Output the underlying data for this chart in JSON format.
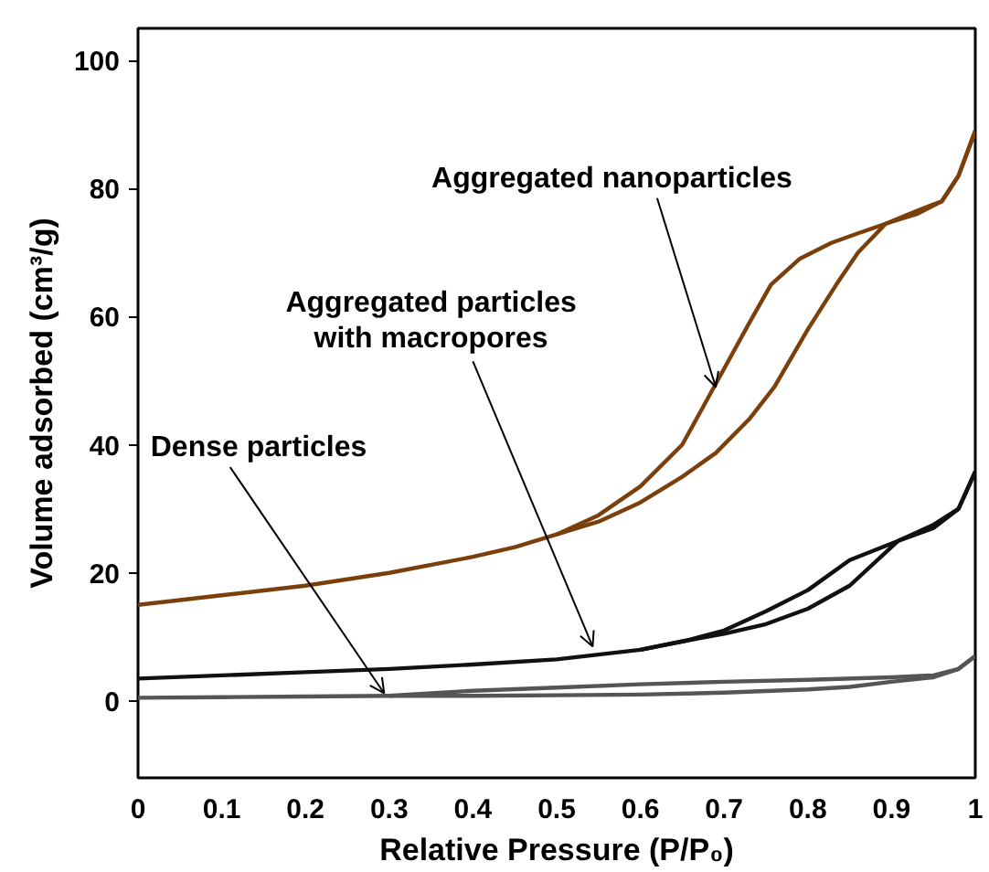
{
  "chart_data": {
    "type": "line",
    "xlabel": "Relative Pressure (P/P₀)",
    "ylabel": "Volume adsorbed (cm³/g)",
    "xlim": [
      0,
      1
    ],
    "ylim": [
      -12,
      105
    ],
    "xticks": [
      0,
      0.1,
      0.2,
      0.3,
      0.4,
      0.5,
      0.6,
      0.7,
      0.8,
      0.9,
      1
    ],
    "yticks": [
      0,
      20,
      40,
      60,
      80,
      100
    ],
    "grid": false,
    "line_style": "solid",
    "marker": "none",
    "series": [
      {
        "color": "#7b3f0c",
        "x": [
          0,
          0.1,
          0.2,
          0.3,
          0.4,
          0.45,
          0.5,
          0.55,
          0.6,
          0.65,
          0.69,
          0.73,
          0.76,
          0.8,
          0.834,
          0.86,
          0.893,
          0.93,
          0.96,
          0.98,
          1.0
        ],
        "values": [
          15,
          16.5,
          18,
          20,
          22.5,
          24,
          26,
          28,
          31,
          35,
          38.7,
          44,
          49,
          58,
          65,
          70,
          74.5,
          76.5,
          78,
          82,
          89
        ]
      },
      {
        "color": "#7b3f0c",
        "x": [
          1.0,
          0.98,
          0.96,
          0.93,
          0.893,
          0.86,
          0.828,
          0.79,
          0.756,
          0.73,
          0.69,
          0.65,
          0.6,
          0.55,
          0.5
        ],
        "values": [
          89,
          82,
          78,
          76,
          74.5,
          73,
          71.5,
          69,
          65,
          59,
          49.5,
          40,
          33.5,
          29,
          26
        ]
      },
      {
        "color": "#111111",
        "x": [
          0,
          0.1,
          0.2,
          0.3,
          0.4,
          0.5,
          0.6,
          0.654,
          0.7,
          0.75,
          0.8,
          0.85,
          0.908,
          0.95,
          0.98,
          1.0
        ],
        "values": [
          3.5,
          4,
          4.5,
          5,
          5.7,
          6.5,
          8,
          9.4,
          10.5,
          12,
          14.4,
          18,
          25,
          27,
          30,
          35.8
        ]
      },
      {
        "color": "#111111",
        "x": [
          1.0,
          0.98,
          0.95,
          0.908,
          0.85,
          0.8,
          0.75,
          0.7,
          0.654,
          0.6
        ],
        "values": [
          35.8,
          30,
          27.5,
          25,
          22,
          17.3,
          14,
          11,
          9.4,
          8
        ]
      },
      {
        "color": "#555555",
        "x": [
          0,
          0.1,
          0.2,
          0.3,
          0.4,
          0.5,
          0.6,
          0.7,
          0.8,
          0.85,
          0.9,
          0.95,
          0.98,
          1.0
        ],
        "values": [
          0.5,
          0.6,
          0.7,
          0.8,
          0.8,
          0.9,
          1,
          1.3,
          1.8,
          2.2,
          3,
          3.7,
          5,
          7
        ]
      },
      {
        "color": "#555555",
        "x": [
          1.0,
          0.98,
          0.95,
          0.9,
          0.8,
          0.7,
          0.6,
          0.5,
          0.4,
          0.35,
          0.3
        ],
        "values": [
          7,
          5,
          4,
          3.7,
          3.3,
          3,
          2.6,
          2.1,
          1.6,
          1.2,
          0.8
        ]
      }
    ],
    "annotations": [
      {
        "text": "Aggregated nanoparticles",
        "x": 0.69,
        "y": 49
      },
      {
        "text": "Aggregated particles\nwith macropores",
        "x": 0.543,
        "y": 8.5
      },
      {
        "text": "Dense particles",
        "x": 0.294,
        "y": 1.2
      }
    ]
  }
}
